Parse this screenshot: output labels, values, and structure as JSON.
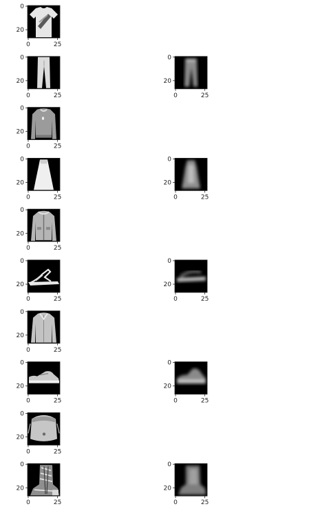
{
  "figure": {
    "colormap": "gray",
    "background": "#ffffff",
    "axis_ticks": {
      "x": [
        "0",
        "25"
      ],
      "y": [
        "0",
        "20"
      ]
    },
    "rows": [
      {
        "original": "t-shirt-top-image",
        "reconstruction": null
      },
      {
        "original": "trouser-image",
        "reconstruction": "trouser-reconstruction-image"
      },
      {
        "original": "pullover-image",
        "reconstruction": null
      },
      {
        "original": "dress-image",
        "reconstruction": "dress-reconstruction-image"
      },
      {
        "original": "coat-image",
        "reconstruction": null
      },
      {
        "original": "sandal-image",
        "reconstruction": "sandal-reconstruction-image"
      },
      {
        "original": "shirt-image",
        "reconstruction": null
      },
      {
        "original": "sneaker-image",
        "reconstruction": "sneaker-reconstruction-image"
      },
      {
        "original": "bag-image",
        "reconstruction": null
      },
      {
        "original": "ankle-boot-image",
        "reconstruction": "ankle-boot-reconstruction-image"
      }
    ]
  }
}
